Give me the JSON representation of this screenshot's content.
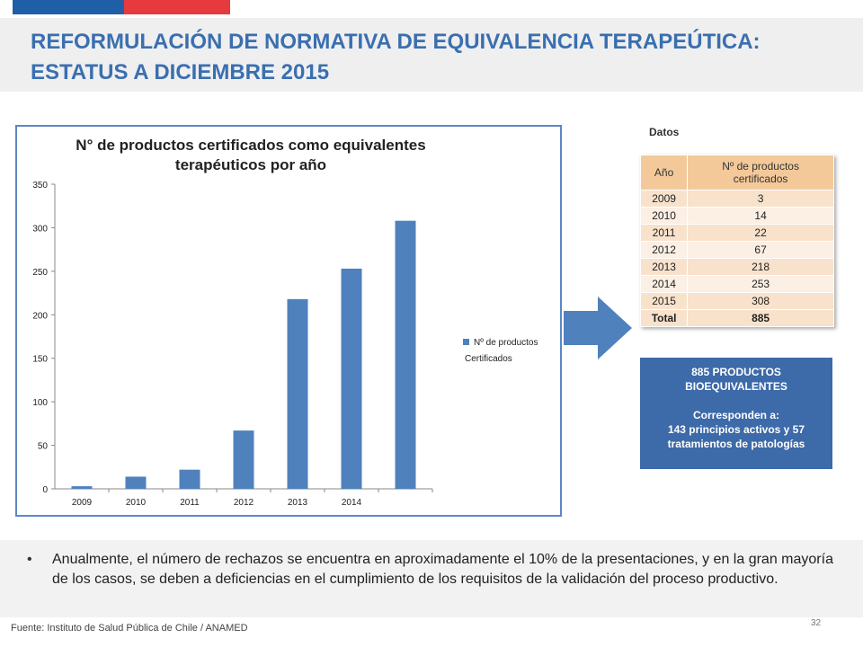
{
  "header": {
    "title_line1": "REFORMULACIÓN DE NORMATIVA DE EQUIVALENCIA TERAPEÚTICA:",
    "title_line2": "ESTATUS A DICIEMBRE 2015"
  },
  "colors": {
    "accent_blue": "#3a6fb0",
    "flag_blue": "#1f5fa8",
    "flag_red": "#e63a3f",
    "bar": "#4f81bd",
    "arrow": "#4f81bd"
  },
  "chart_data": {
    "type": "bar",
    "title_line1": "N° de productos certificados como equivalentes",
    "title_line2": "terapéuticos por año",
    "categories": [
      "2009",
      "2010",
      "2011",
      "2012",
      "2013",
      "2014",
      ""
    ],
    "values": [
      3,
      14,
      22,
      67,
      218,
      253,
      308
    ],
    "series": [
      {
        "name_line1": "Nº de productos",
        "name_line2": "Certificados",
        "values": [
          3,
          14,
          22,
          67,
          218,
          253,
          308
        ]
      }
    ],
    "y_ticks": [
      "350",
      "300",
      "250",
      "200",
      "150",
      "100",
      "50",
      "0"
    ],
    "ylim": [
      0,
      350
    ],
    "legend_position": "right"
  },
  "table": {
    "label": "Datos",
    "header_year": "Año",
    "header_count_line1": "Nº de productos",
    "header_count_line2": "certificados",
    "rows": [
      {
        "year": "2009",
        "count": "3"
      },
      {
        "year": "2010",
        "count": "14"
      },
      {
        "year": "2011",
        "count": "22"
      },
      {
        "year": "2012",
        "count": "67"
      },
      {
        "year": "2013",
        "count": "218"
      },
      {
        "year": "2014",
        "count": "253"
      },
      {
        "year": "2015",
        "count": "308"
      }
    ],
    "total_label": "Total",
    "total_value": "885"
  },
  "info_box": {
    "line1": "885 PRODUCTOS",
    "line2": "BIOEQUIVALENTES",
    "line3": "Corresponden a:",
    "line4": "143 principios activos y 57",
    "line5": "tratamientos de patologías"
  },
  "bullet": {
    "text": "Anualmente, el número de rechazos se encuentra en aproximadamente el 10% de la presentaciones, y en la gran mayoría de los casos, se deben a deficiencias en el cumplimiento de los requisitos de la validación del proceso productivo."
  },
  "footer": {
    "source": "Fuente: Instituto de Salud Pública de Chile / ANAMED",
    "page_number": "32"
  }
}
